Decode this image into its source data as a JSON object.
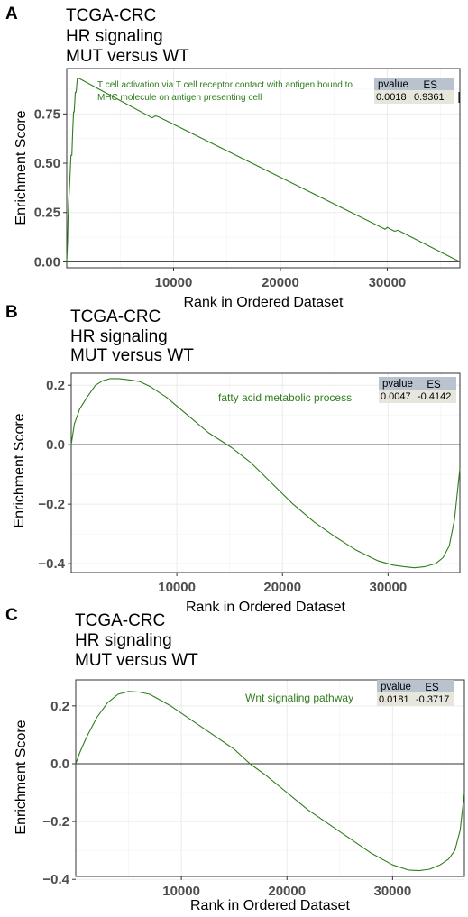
{
  "chart_data": [
    {
      "panel": "A",
      "type": "line",
      "title": [
        "TCGA-CRC",
        "HR signaling",
        "MUT versus WT"
      ],
      "xlabel": "Rank in Ordered Dataset",
      "ylabel": "Enrichment Score",
      "xlim": [
        0,
        36800
      ],
      "ylim": [
        -0.03,
        0.98
      ],
      "xticks": [
        10000,
        20000,
        30000
      ],
      "xtick_labels": [
        "10000",
        "20000",
        "30000"
      ],
      "yticks": [
        0.0,
        0.25,
        0.5,
        0.75
      ],
      "ytick_labels": [
        "0.00",
        "0.25",
        "0.50",
        "0.75"
      ],
      "grid": true,
      "series_color": "#2e7d1b",
      "pathway": [
        "T cell activation via T cell receptor contact with antigen bound to",
        "MHC molecule on antigen presenting cell"
      ],
      "table": {
        "headers": [
          "pvalue",
          "ES"
        ],
        "values": [
          "0.0018",
          "0.9361"
        ]
      },
      "series": [
        {
          "x": [
            0,
            80,
            120,
            180,
            260,
            330,
            400,
            480,
            560,
            640,
            700,
            800,
            880,
            1000,
            1150,
            8000,
            8300,
            8600,
            29800,
            30000,
            30300,
            30700,
            31000,
            36800
          ],
          "y": [
            0.0,
            0.1,
            0.21,
            0.3,
            0.38,
            0.46,
            0.54,
            0.54,
            0.66,
            0.76,
            0.76,
            0.86,
            0.86,
            0.93,
            0.93,
            0.73,
            0.74,
            0.735,
            0.165,
            0.175,
            0.165,
            0.155,
            0.16,
            0.0
          ]
        }
      ]
    },
    {
      "panel": "B",
      "type": "line",
      "title": [
        "TCGA-CRC",
        "HR signaling",
        "MUT versus WT"
      ],
      "xlabel": "Rank in Ordered Dataset",
      "ylabel": "Enrichment Score",
      "xlim": [
        0,
        36800
      ],
      "ylim": [
        -0.43,
        0.24
      ],
      "xticks": [
        10000,
        20000,
        30000
      ],
      "xtick_labels": [
        "10000",
        "20000",
        "30000"
      ],
      "yticks": [
        0.2,
        0.0,
        -0.2,
        -0.4
      ],
      "ytick_labels": [
        "0.2",
        "0.0",
        "−0.2",
        "−0.4"
      ],
      "grid": true,
      "series_color": "#2e7d1b",
      "pathway": [
        "fatty acid metabolic process"
      ],
      "table": {
        "headers": [
          "pvalue",
          "ES"
        ],
        "values": [
          "0.0047",
          "-0.4142"
        ]
      },
      "series": [
        {
          "x": [
            0,
            300,
            800,
            1500,
            2300,
            3000,
            3700,
            4500,
            5500,
            6500,
            7500,
            9000,
            11000,
            13000,
            15200,
            17000,
            19000,
            21000,
            23000,
            25000,
            27000,
            29000,
            30500,
            31500,
            32500,
            33500,
            34500,
            35200,
            35800,
            36300,
            36800
          ],
          "y": [
            0.0,
            0.07,
            0.12,
            0.16,
            0.2,
            0.215,
            0.222,
            0.222,
            0.218,
            0.212,
            0.195,
            0.16,
            0.1,
            0.04,
            -0.01,
            -0.06,
            -0.13,
            -0.2,
            -0.26,
            -0.31,
            -0.355,
            -0.39,
            -0.405,
            -0.41,
            -0.414,
            -0.41,
            -0.4,
            -0.38,
            -0.34,
            -0.25,
            -0.08
          ]
        }
      ]
    },
    {
      "panel": "C",
      "type": "line",
      "title": [
        "TCGA-CRC",
        "HR signaling",
        "MUT versus WT"
      ],
      "xlabel": "Rank in Ordered Dataset",
      "ylabel": "Enrichment Score",
      "xlim": [
        0,
        36800
      ],
      "ylim": [
        -0.39,
        0.29
      ],
      "xticks": [
        10000,
        20000,
        30000
      ],
      "xtick_labels": [
        "10000",
        "20000",
        "30000"
      ],
      "yticks": [
        0.2,
        0.0,
        -0.2,
        -0.4
      ],
      "ytick_labels": [
        "0.2",
        "0.0",
        "−0.2",
        "−0.4"
      ],
      "grid": true,
      "series_color": "#2e7d1b",
      "pathway": [
        "Wnt signaling pathway"
      ],
      "table": {
        "headers": [
          "pvalue",
          "ES"
        ],
        "values": [
          "0.0181",
          "-0.3717"
        ]
      },
      "series": [
        {
          "x": [
            0,
            400,
            1000,
            2000,
            3000,
            4000,
            5000,
            6000,
            7000,
            8000,
            9000,
            11000,
            13000,
            15000,
            16500,
            18000,
            20000,
            22000,
            24000,
            26000,
            28000,
            30000,
            31500,
            32500,
            33500,
            34500,
            35300,
            35900,
            36400,
            36800
          ],
          "y": [
            0.0,
            0.04,
            0.09,
            0.16,
            0.21,
            0.24,
            0.25,
            0.248,
            0.24,
            0.22,
            0.2,
            0.15,
            0.1,
            0.05,
            0.0,
            -0.04,
            -0.1,
            -0.16,
            -0.21,
            -0.26,
            -0.31,
            -0.35,
            -0.368,
            -0.37,
            -0.365,
            -0.35,
            -0.33,
            -0.3,
            -0.23,
            -0.1
          ]
        }
      ]
    }
  ]
}
